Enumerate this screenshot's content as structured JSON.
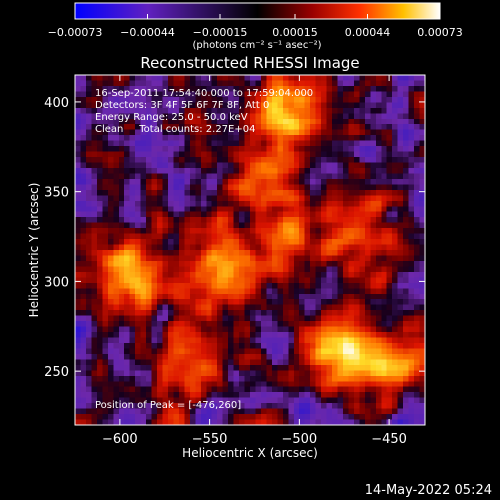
{
  "chart_data": {
    "type": "heatmap",
    "title": "Reconstructed RHESSI Image",
    "xlabel": "Heliocentric X (arcsec)",
    "ylabel": "Heliocentric Y (arcsec)",
    "xlim": [
      -625,
      -430
    ],
    "ylim": [
      220,
      415
    ],
    "x_ticks": [
      -600,
      -550,
      -500,
      -450
    ],
    "x_tick_labels": [
      "−600",
      "−550",
      "−500",
      "−450"
    ],
    "y_ticks": [
      250,
      300,
      350,
      400
    ],
    "y_tick_labels": [
      "250",
      "300",
      "350",
      "400"
    ],
    "colorbar": {
      "ticks": [
        -0.00073,
        -0.00044,
        -0.00015,
        0.00015,
        0.00044,
        0.00073
      ],
      "tick_labels": [
        "−0.00073",
        "−0.00044",
        "−0.00015",
        "0.00015",
        "0.00044",
        "0.00073"
      ],
      "unit_text": "(photons cm⁻² s⁻¹ asec⁻²)",
      "range": [
        -0.00073,
        0.00073
      ],
      "colors": [
        "#0000ff",
        "#6020c0",
        "#000000",
        "#700000",
        "#d00000",
        "#ff8000",
        "#ffff00",
        "#ffffff"
      ]
    },
    "annotations": [
      "16-Sep-2011 17:54:40.000 to 17:59:04.000",
      "Detectors: 3F 4F 5F 6F 7F 8F, Att 0",
      "Energy Range: 25.0 - 50.0 keV",
      "Clean     Total counts: 2.27E+04",
      "Position of Peak = [-476,260]"
    ],
    "peak": {
      "x": -476,
      "y": 260,
      "relative_level": 1.0
    },
    "emission_blobs": [
      {
        "x": -476,
        "y": 260,
        "relative_level": 1.0
      },
      {
        "x": -545,
        "y": 310,
        "relative_level": 0.85
      },
      {
        "x": -505,
        "y": 395,
        "relative_level": 0.8
      },
      {
        "x": -595,
        "y": 305,
        "relative_level": 0.6
      },
      {
        "x": -505,
        "y": 325,
        "relative_level": 0.55
      },
      {
        "x": -560,
        "y": 255,
        "relative_level": 0.5
      },
      {
        "x": -520,
        "y": 360,
        "relative_level": 0.5
      },
      {
        "x": -450,
        "y": 255,
        "relative_level": 0.5
      },
      {
        "x": -465,
        "y": 330,
        "relative_level": 0.45
      }
    ],
    "grid": false
  },
  "footer": {
    "timestamp": "14-May-2022 05:24"
  }
}
